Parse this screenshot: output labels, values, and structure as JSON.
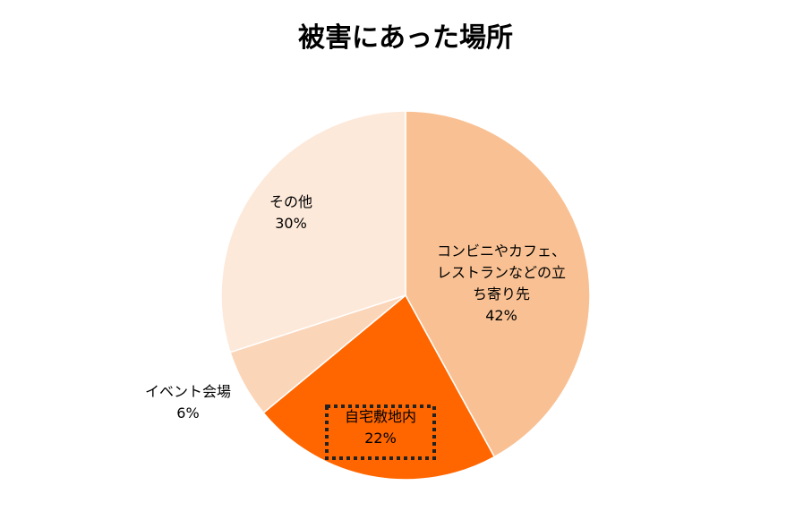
{
  "chart_data": {
    "type": "pie",
    "title": "被害にあった場所",
    "slices": [
      {
        "label_lines": [
          "コンビニやカフェ、",
          "レストランなどの立",
          "ち寄り先"
        ],
        "percent_label": "42%",
        "value": 42,
        "color": "#F9C193"
      },
      {
        "label_lines": [
          "自宅敷地内"
        ],
        "percent_label": "22%",
        "value": 22,
        "color": "#FF6600",
        "highlighted": true
      },
      {
        "label_lines": [
          "イベント会場"
        ],
        "percent_label": "6%",
        "value": 6,
        "color": "#FBD5B8"
      },
      {
        "label_lines": [
          "その他"
        ],
        "percent_label": "30%",
        "value": 30,
        "color": "#FDE9DA"
      }
    ],
    "legend": "none"
  }
}
